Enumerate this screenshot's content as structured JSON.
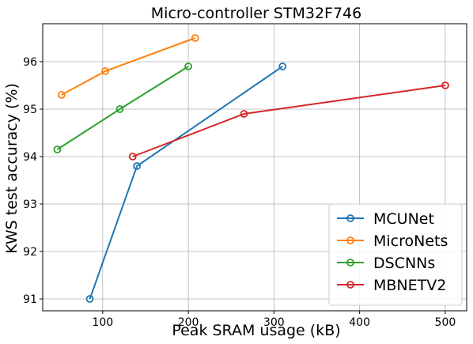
{
  "chart_data": {
    "type": "line",
    "title": "Micro-controller STM32F746",
    "xlabel": "Peak SRAM usage (kB)",
    "ylabel": "KWS test accuracy (%)",
    "xlim": [
      30,
      525
    ],
    "ylim": [
      90.75,
      96.8
    ],
    "xticks": [
      100,
      200,
      300,
      400,
      500
    ],
    "yticks": [
      91,
      92,
      93,
      94,
      95,
      96
    ],
    "grid": true,
    "legend_position": "bottom-right",
    "series": [
      {
        "name": "MCUNet",
        "color": "#1f77b4",
        "points": [
          [
            85,
            91.0
          ],
          [
            140,
            93.8
          ],
          [
            310,
            95.9
          ]
        ]
      },
      {
        "name": "MicroNets",
        "color": "#ff7f0e",
        "points": [
          [
            52,
            95.3
          ],
          [
            103,
            95.8
          ],
          [
            208,
            96.5
          ]
        ]
      },
      {
        "name": "DSCNNs",
        "color": "#2ca02c",
        "points": [
          [
            47,
            94.15
          ],
          [
            120,
            95.0
          ],
          [
            200,
            95.9
          ]
        ]
      },
      {
        "name": "MBNETV2",
        "color": "#d62728",
        "points": [
          [
            135,
            94.0
          ],
          [
            265,
            94.9
          ],
          [
            500,
            95.5
          ]
        ]
      }
    ]
  }
}
